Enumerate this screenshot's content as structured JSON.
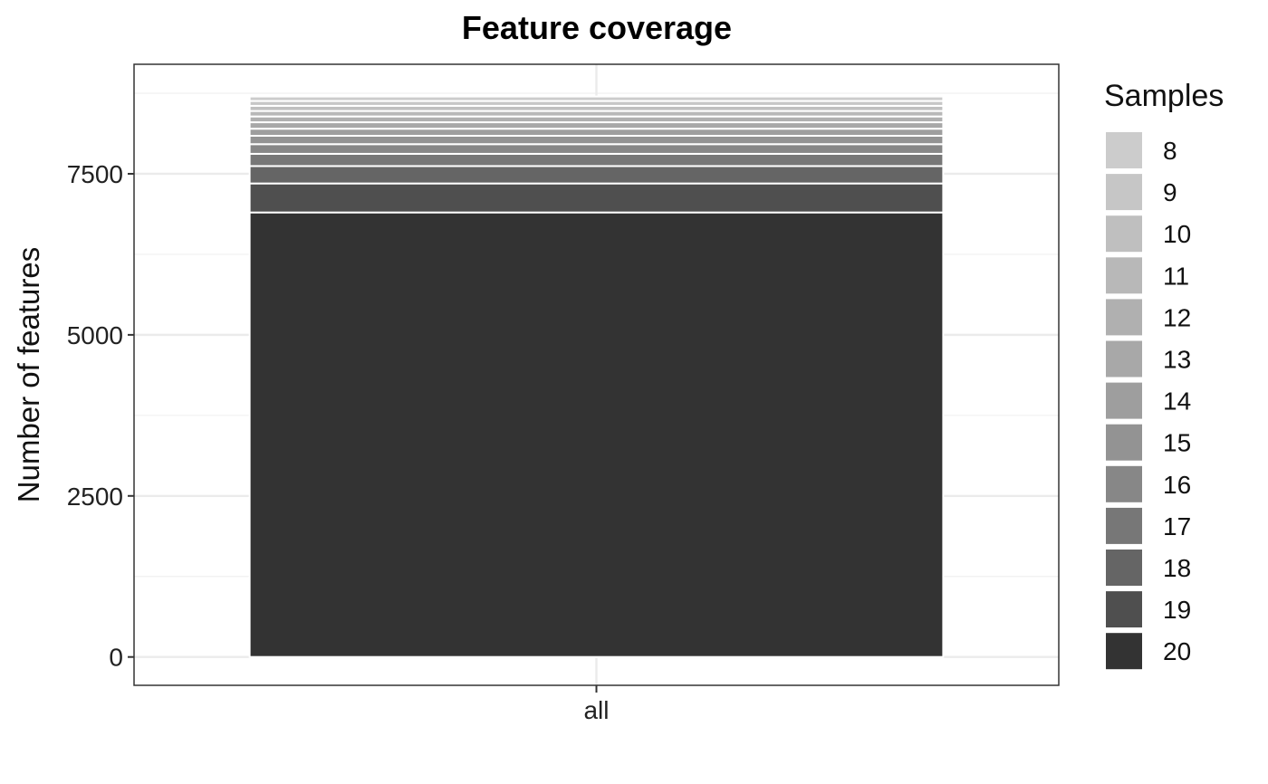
{
  "chart_data": {
    "type": "bar",
    "stacked": true,
    "title": "Feature coverage",
    "xlabel": "",
    "ylabel": "Number of features",
    "categories": [
      "all"
    ],
    "ylim": [
      -440,
      9200
    ],
    "y_ticks": [
      0,
      2500,
      5000,
      7500
    ],
    "y_tick_labels": [
      "0",
      "2500",
      "5000",
      "7500"
    ],
    "grid": true,
    "legend": {
      "title": "Samples",
      "position": "right"
    },
    "series": [
      {
        "name": "20",
        "color": "#333333",
        "values": [
          6900
        ]
      },
      {
        "name": "19",
        "color": "#4f4f4f",
        "values": [
          450
        ]
      },
      {
        "name": "18",
        "color": "#656565",
        "values": [
          270
        ]
      },
      {
        "name": "17",
        "color": "#777777",
        "values": [
          190
        ]
      },
      {
        "name": "16",
        "color": "#878787",
        "values": [
          150
        ]
      },
      {
        "name": "15",
        "color": "#939393",
        "values": [
          130
        ]
      },
      {
        "name": "14",
        "color": "#9e9e9e",
        "values": [
          110
        ]
      },
      {
        "name": "13",
        "color": "#a8a8a8",
        "values": [
          100
        ]
      },
      {
        "name": "12",
        "color": "#b0b0b0",
        "values": [
          90
        ]
      },
      {
        "name": "11",
        "color": "#b8b8b8",
        "values": [
          85
        ]
      },
      {
        "name": "10",
        "color": "#bfbfbf",
        "values": [
          80
        ]
      },
      {
        "name": "9",
        "color": "#c6c6c6",
        "values": [
          75
        ]
      },
      {
        "name": "8",
        "color": "#cccccc",
        "values": [
          70
        ]
      }
    ],
    "legend_order": [
      "8",
      "9",
      "10",
      "11",
      "12",
      "13",
      "14",
      "15",
      "16",
      "17",
      "18",
      "19",
      "20"
    ]
  }
}
